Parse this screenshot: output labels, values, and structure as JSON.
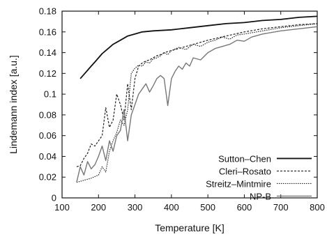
{
  "chart_data": {
    "type": "line",
    "xlabel": "Temperature [K]",
    "ylabel": "Lindemann index [a.u.]",
    "xlim": [
      100,
      800
    ],
    "ylim": [
      0,
      0.18
    ],
    "xticks": [
      "100",
      "200",
      "300",
      "400",
      "500",
      "600",
      "700",
      "800"
    ],
    "yticks": [
      "0",
      "0.02",
      "0.04",
      "0.06",
      "0.08",
      "0.1",
      "0.12",
      "0.14",
      "0.16",
      "0.18"
    ],
    "grid": false,
    "legend_position": "bottom-right",
    "series": [
      {
        "name": "Sutton–Chen",
        "style": "solid-thick",
        "color": "#111111",
        "x": [
          150,
          160,
          170,
          180,
          190,
          200,
          210,
          220,
          230,
          240,
          250,
          260,
          270,
          280,
          290,
          300,
          320,
          350,
          400,
          450,
          500,
          550,
          600,
          650,
          700,
          750,
          800
        ],
        "y": [
          0.115,
          0.119,
          0.123,
          0.127,
          0.131,
          0.135,
          0.139,
          0.142,
          0.145,
          0.148,
          0.15,
          0.152,
          0.154,
          0.156,
          0.157,
          0.158,
          0.16,
          0.161,
          0.162,
          0.164,
          0.166,
          0.168,
          0.169,
          0.171,
          0.172,
          0.174,
          0.175
        ]
      },
      {
        "name": "Cleri–Rosato",
        "style": "dashed",
        "color": "#222222",
        "x": [
          140,
          150,
          160,
          170,
          180,
          190,
          200,
          210,
          220,
          230,
          240,
          250,
          260,
          270,
          280,
          290,
          300,
          310,
          320,
          330,
          340,
          350,
          360,
          370,
          380,
          390,
          400,
          420,
          450,
          480,
          500,
          550,
          600,
          650,
          700,
          750,
          800
        ],
        "y": [
          0.03,
          0.031,
          0.038,
          0.043,
          0.052,
          0.05,
          0.055,
          0.06,
          0.087,
          0.068,
          0.075,
          0.1,
          0.09,
          0.075,
          0.11,
          0.085,
          0.115,
          0.127,
          0.13,
          0.132,
          0.133,
          0.135,
          0.137,
          0.138,
          0.14,
          0.141,
          0.142,
          0.144,
          0.147,
          0.15,
          0.152,
          0.156,
          0.16,
          0.163,
          0.165,
          0.167,
          0.168
        ]
      },
      {
        "name": "Streitz–Mintmire",
        "style": "dotted",
        "color": "#222222",
        "x": [
          140,
          160,
          180,
          200,
          210,
          220,
          230,
          240,
          250,
          260,
          270,
          280,
          290,
          300,
          310,
          320,
          330,
          340,
          350,
          360,
          370,
          380,
          390,
          400,
          420,
          440,
          460,
          480,
          500,
          520,
          540,
          560,
          580,
          600,
          650,
          700,
          750,
          800
        ],
        "y": [
          0.015,
          0.017,
          0.019,
          0.022,
          0.03,
          0.025,
          0.045,
          0.055,
          0.063,
          0.075,
          0.07,
          0.085,
          0.12,
          0.125,
          0.128,
          0.127,
          0.131,
          0.13,
          0.134,
          0.135,
          0.137,
          0.14,
          0.138,
          0.142,
          0.145,
          0.143,
          0.148,
          0.146,
          0.15,
          0.152,
          0.155,
          0.153,
          0.157,
          0.158,
          0.161,
          0.164,
          0.166,
          0.168
        ]
      },
      {
        "name": "NP-B",
        "style": "solid-gray",
        "color": "#777777",
        "x": [
          140,
          150,
          160,
          170,
          180,
          190,
          200,
          210,
          220,
          230,
          240,
          250,
          260,
          270,
          280,
          290,
          300,
          310,
          320,
          330,
          340,
          350,
          360,
          370,
          380,
          390,
          400,
          410,
          420,
          430,
          440,
          450,
          460,
          480,
          500,
          520,
          540,
          560,
          580,
          600,
          620,
          650,
          700,
          750,
          800
        ],
        "y": [
          0.015,
          0.03,
          0.022,
          0.035,
          0.028,
          0.032,
          0.04,
          0.05,
          0.036,
          0.055,
          0.045,
          0.06,
          0.065,
          0.085,
          0.055,
          0.08,
          0.09,
          0.1,
          0.105,
          0.11,
          0.102,
          0.108,
          0.115,
          0.118,
          0.115,
          0.089,
          0.115,
          0.122,
          0.127,
          0.124,
          0.13,
          0.127,
          0.135,
          0.133,
          0.14,
          0.144,
          0.146,
          0.148,
          0.152,
          0.151,
          0.155,
          0.158,
          0.161,
          0.163,
          0.165
        ]
      }
    ]
  }
}
